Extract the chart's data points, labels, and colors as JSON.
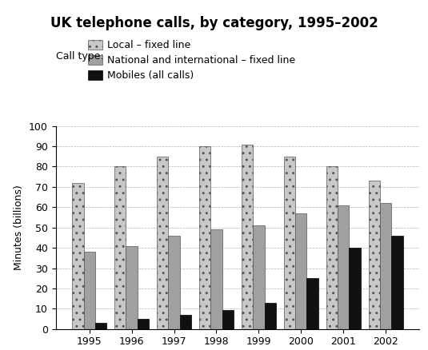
{
  "title": "UK telephone calls, by category, 1995–2002",
  "ylabel": "Minutes (billions)",
  "years": [
    1995,
    1996,
    1997,
    1998,
    1999,
    2000,
    2001,
    2002
  ],
  "local_fixed": [
    72,
    80,
    85,
    90,
    91,
    85,
    80,
    73
  ],
  "national_fixed": [
    38,
    41,
    46,
    49,
    51,
    57,
    61,
    62
  ],
  "mobiles": [
    3,
    5,
    7,
    9.5,
    13,
    25,
    40,
    46
  ],
  "ylim": [
    0,
    100
  ],
  "yticks": [
    0,
    10,
    20,
    30,
    40,
    50,
    60,
    70,
    80,
    90,
    100
  ],
  "color_local": "#c8c8c8",
  "color_national": "#a0a0a0",
  "color_mobiles": "#111111",
  "hatch_local": "..",
  "hatch_national": "",
  "legend_label_local": "Local – fixed line",
  "legend_label_national": "National and international – fixed line",
  "legend_label_mobiles": "Mobiles (all calls)",
  "call_type_label": "Call type:",
  "bar_width": 0.27,
  "title_fontsize": 12,
  "axis_label_fontsize": 9,
  "legend_fontsize": 9,
  "tick_fontsize": 9
}
